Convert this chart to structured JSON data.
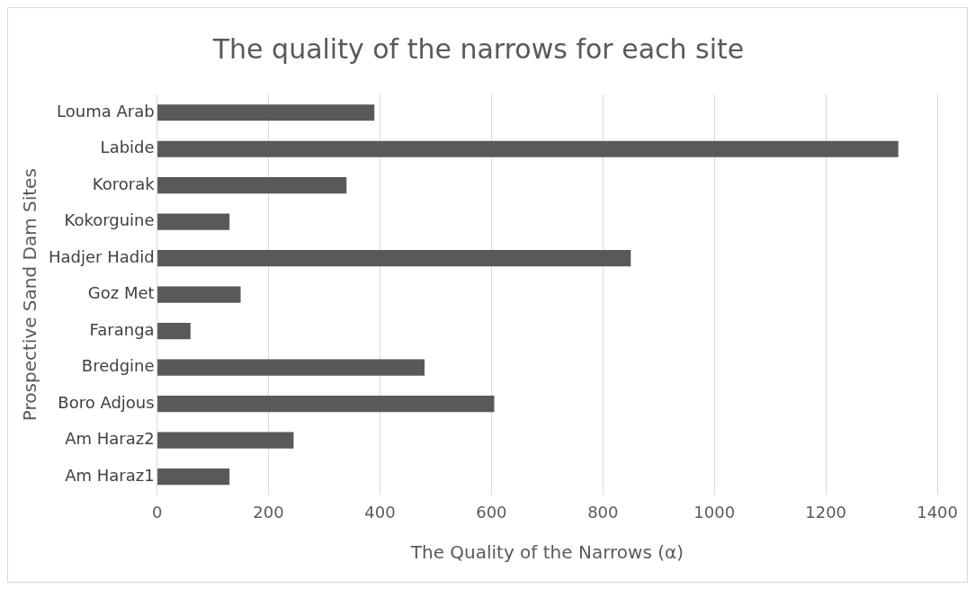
{
  "chart_data": {
    "type": "bar",
    "orientation": "horizontal",
    "title": "The quality of the narrows for each site",
    "xlabel": "The Quality of the Narrows (α)",
    "ylabel": "Prospective Sand Dam Sites",
    "categories": [
      "Louma Arab",
      "Labide",
      "Kororak",
      "Kokorguine",
      "Hadjer Hadid",
      "Goz Met",
      "Faranga",
      "Bredgine",
      "Boro Adjous",
      "Am Haraz2",
      "Am Haraz1"
    ],
    "values": [
      390,
      1330,
      340,
      130,
      850,
      150,
      60,
      480,
      605,
      245,
      130
    ],
    "color": "#595959",
    "xlim": [
      0,
      1400
    ],
    "xticks": [
      0,
      200,
      400,
      600,
      800,
      1000,
      1200,
      1400
    ],
    "grid": "x",
    "legend": false
  }
}
